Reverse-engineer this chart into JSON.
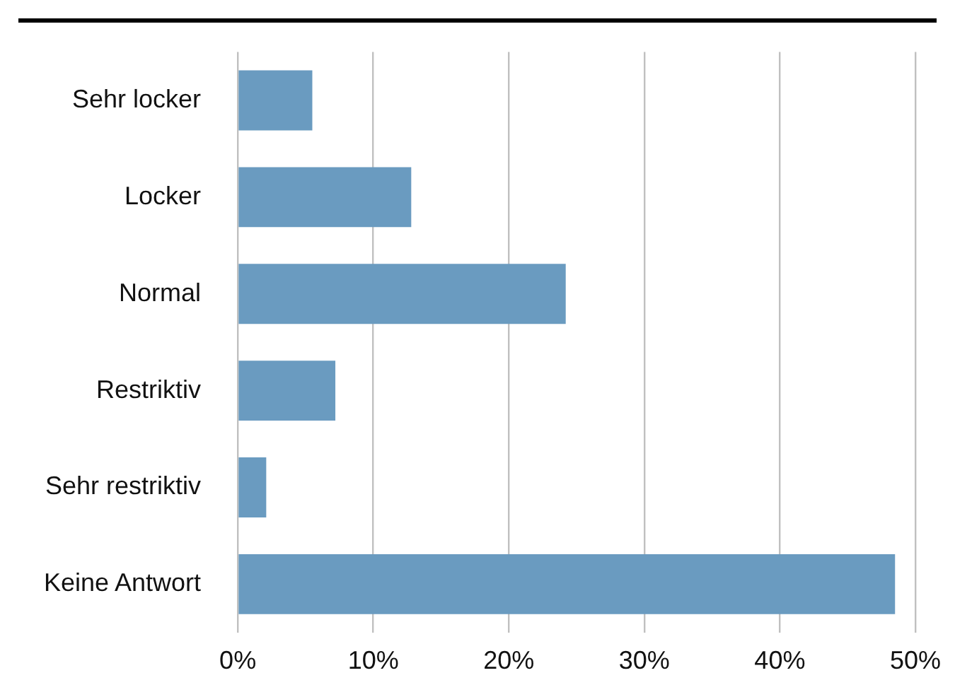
{
  "chart_data": {
    "type": "bar",
    "orientation": "horizontal",
    "categories": [
      "Sehr locker",
      "Locker",
      "Normal",
      "Restriktiv",
      "Sehr restriktiv",
      "Keine Antwort"
    ],
    "values": [
      5.5,
      12.8,
      24.2,
      7.2,
      2.1,
      48.5
    ],
    "color": "#6a9bc0",
    "xlim": [
      0,
      50
    ],
    "xticks": [
      {
        "value": 0,
        "label": "0%"
      },
      {
        "value": 10,
        "label": "10%"
      },
      {
        "value": 20,
        "label": "20%"
      },
      {
        "value": 30,
        "label": "30%"
      },
      {
        "value": 40,
        "label": "40%"
      },
      {
        "value": 50,
        "label": "50%"
      }
    ],
    "grid": "x",
    "legend": false
  }
}
